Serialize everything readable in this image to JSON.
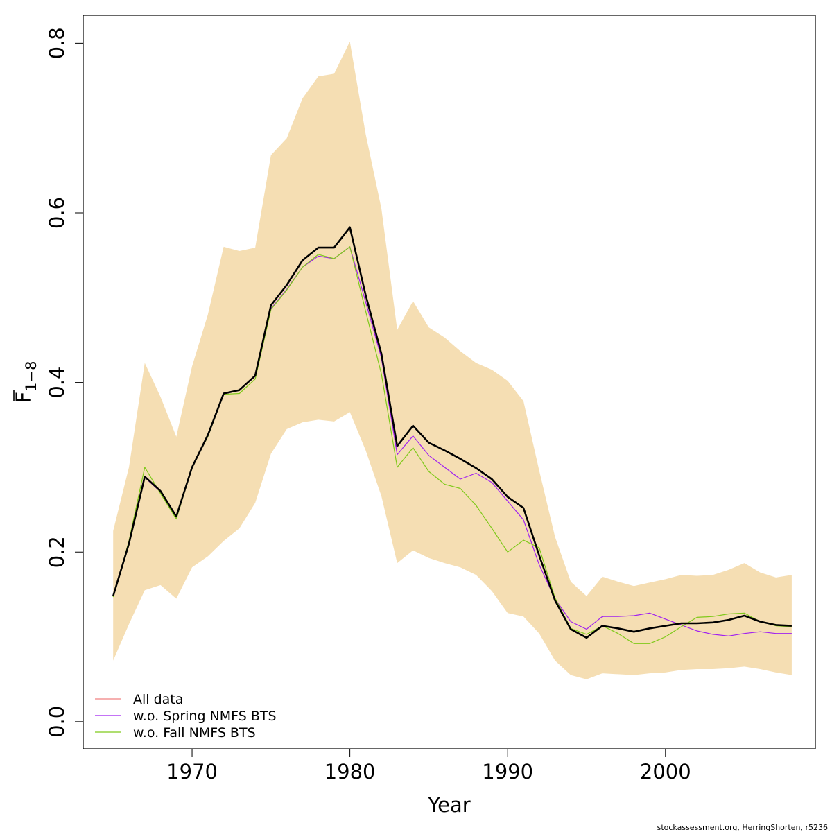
{
  "chart_data": {
    "type": "line",
    "title": "",
    "xlabel": "Year",
    "ylabel": "F",
    "ylabel_subscript": "1−8",
    "xlim": [
      1963.1,
      2009.5
    ],
    "ylim": [
      -0.032,
      0.833
    ],
    "x_ticks": [
      1970,
      1980,
      1990,
      2000
    ],
    "x_tick_labels": [
      "1970",
      "1980",
      "1990",
      "2000"
    ],
    "y_ticks": [
      0.0,
      0.2,
      0.4,
      0.6,
      0.8
    ],
    "y_tick_labels": [
      "0.0",
      "0.2",
      "0.4",
      "0.6",
      "0.8"
    ],
    "x": [
      1965,
      1966,
      1967,
      1968,
      1969,
      1970,
      1971,
      1972,
      1973,
      1974,
      1975,
      1976,
      1977,
      1978,
      1979,
      1980,
      1981,
      1982,
      1983,
      1984,
      1985,
      1986,
      1987,
      1988,
      1989,
      1990,
      1991,
      1992,
      1993,
      1994,
      1995,
      1996,
      1997,
      1998,
      1999,
      2000,
      2001,
      2002,
      2003,
      2004,
      2005,
      2006,
      2007,
      2008
    ],
    "band": {
      "color": "#F5DEB3",
      "upper": [
        0.225,
        0.3,
        0.423,
        0.383,
        0.336,
        0.419,
        0.48,
        0.56,
        0.555,
        0.559,
        0.668,
        0.688,
        0.735,
        0.761,
        0.764,
        0.802,
        0.693,
        0.605,
        0.462,
        0.496,
        0.465,
        0.453,
        0.437,
        0.423,
        0.415,
        0.402,
        0.378,
        0.296,
        0.218,
        0.165,
        0.148,
        0.171,
        0.165,
        0.16,
        0.164,
        0.168,
        0.173,
        0.172,
        0.173,
        0.179,
        0.187,
        0.176,
        0.17,
        0.173
      ],
      "lower": [
        0.072,
        0.115,
        0.155,
        0.161,
        0.145,
        0.182,
        0.195,
        0.213,
        0.228,
        0.258,
        0.316,
        0.345,
        0.353,
        0.356,
        0.354,
        0.365,
        0.32,
        0.266,
        0.187,
        0.202,
        0.193,
        0.187,
        0.182,
        0.173,
        0.154,
        0.128,
        0.124,
        0.104,
        0.072,
        0.055,
        0.05,
        0.057,
        0.056,
        0.055,
        0.057,
        0.058,
        0.061,
        0.062,
        0.062,
        0.063,
        0.065,
        0.062,
        0.058,
        0.055
      ]
    },
    "series": [
      {
        "name": "All data",
        "color": "#F08080",
        "width": 1.2,
        "values": [
          0.148,
          0.21,
          0.289,
          0.272,
          0.242,
          0.3,
          0.338,
          0.387,
          0.391,
          0.408,
          0.491,
          0.515,
          0.544,
          0.559,
          0.559,
          0.583,
          0.503,
          0.434,
          0.325,
          0.349,
          0.329,
          0.32,
          0.31,
          0.299,
          0.286,
          0.265,
          0.252,
          0.196,
          0.143,
          0.109,
          0.099,
          0.113,
          0.11,
          0.106,
          0.11,
          0.113,
          0.116,
          0.116,
          0.117,
          0.12,
          0.125,
          0.118,
          0.114,
          0.113
        ]
      },
      {
        "name": "w.o. Spring NMFS BTS",
        "color": "#A020F0",
        "width": 1.2,
        "values": [
          0.148,
          0.21,
          0.288,
          0.271,
          0.242,
          0.3,
          0.336,
          0.386,
          0.391,
          0.407,
          0.487,
          0.51,
          0.536,
          0.549,
          0.546,
          0.56,
          0.495,
          0.429,
          0.315,
          0.337,
          0.314,
          0.3,
          0.286,
          0.293,
          0.282,
          0.26,
          0.238,
          0.185,
          0.145,
          0.118,
          0.109,
          0.124,
          0.124,
          0.125,
          0.128,
          0.121,
          0.114,
          0.107,
          0.103,
          0.101,
          0.104,
          0.106,
          0.104,
          0.104
        ]
      },
      {
        "name": "w.o. Fall NMFS BTS",
        "color": "#7FC91A",
        "width": 1.2,
        "values": [
          0.147,
          0.213,
          0.3,
          0.269,
          0.239,
          0.3,
          0.336,
          0.386,
          0.387,
          0.404,
          0.486,
          0.509,
          0.536,
          0.551,
          0.546,
          0.56,
          0.484,
          0.41,
          0.3,
          0.323,
          0.295,
          0.28,
          0.275,
          0.255,
          0.228,
          0.2,
          0.214,
          0.205,
          0.146,
          0.11,
          0.103,
          0.113,
          0.104,
          0.092,
          0.092,
          0.1,
          0.112,
          0.123,
          0.124,
          0.127,
          0.128,
          0.118,
          0.113,
          0.112
        ]
      },
      {
        "name": "",
        "color": "#000000",
        "width": 2.6,
        "values": [
          0.148,
          0.21,
          0.289,
          0.272,
          0.242,
          0.3,
          0.338,
          0.387,
          0.391,
          0.408,
          0.491,
          0.515,
          0.544,
          0.559,
          0.559,
          0.583,
          0.503,
          0.434,
          0.325,
          0.349,
          0.329,
          0.32,
          0.31,
          0.299,
          0.286,
          0.265,
          0.252,
          0.196,
          0.143,
          0.109,
          0.099,
          0.113,
          0.11,
          0.106,
          0.11,
          0.113,
          0.116,
          0.116,
          0.117,
          0.12,
          0.125,
          0.118,
          0.114,
          0.113
        ]
      }
    ],
    "legend": {
      "position": "bottom-left",
      "entries": [
        {
          "label": "All data",
          "color": "#F08080"
        },
        {
          "label": "w.o. Spring NMFS BTS",
          "color": "#A020F0"
        },
        {
          "label": "w.o. Fall NMFS BTS",
          "color": "#7FC91A"
        }
      ]
    },
    "grid": false
  },
  "footer": "stockassessment.org, HerringShorten, r5236"
}
